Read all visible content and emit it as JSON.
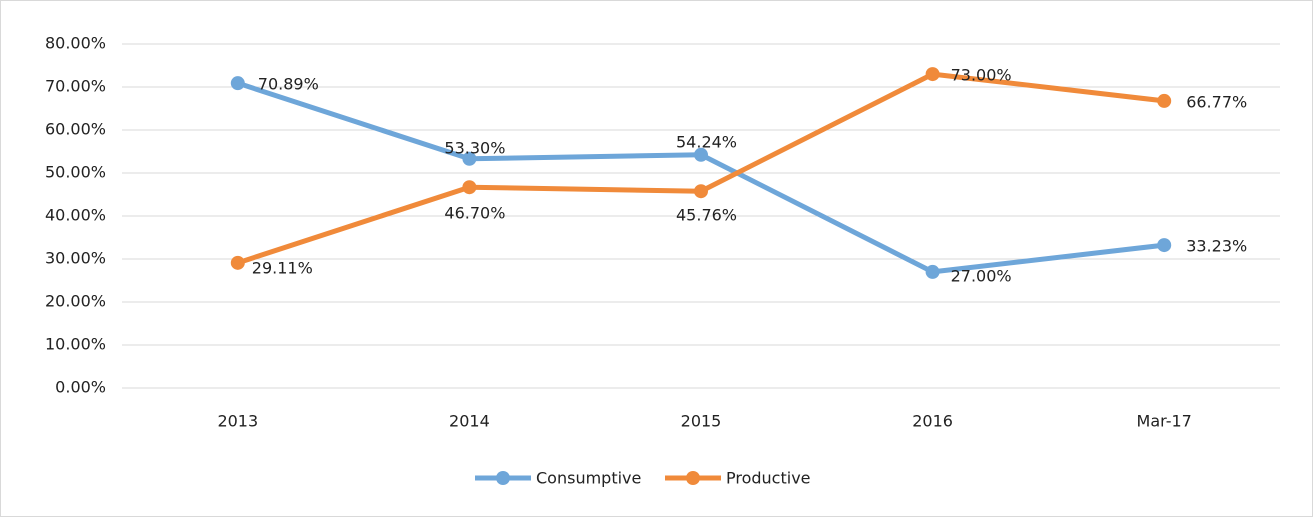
{
  "chart_data": {
    "type": "line",
    "categories": [
      "2013",
      "2014",
      "2015",
      "2016",
      "Mar-17"
    ],
    "series": [
      {
        "name": "Consumptive",
        "color": "#6ea6d9",
        "values": [
          70.89,
          53.3,
          54.24,
          27.0,
          33.23
        ],
        "value_labels": [
          "70.89%",
          "53.30%",
          "54.24%",
          "27.00%",
          "33.23%"
        ]
      },
      {
        "name": "Productive",
        "color": "#f08a3a",
        "values": [
          29.11,
          46.7,
          45.76,
          73.0,
          66.77
        ],
        "value_labels": [
          "29.11%",
          "46.70%",
          "45.76%",
          "73.00%",
          "66.77%"
        ]
      }
    ],
    "ylim": [
      0,
      80
    ],
    "yticks": [
      {
        "value": 0,
        "label": "0.00%"
      },
      {
        "value": 10,
        "label": "10.00%"
      },
      {
        "value": 20,
        "label": "20.00%"
      },
      {
        "value": 30,
        "label": "30.00%"
      },
      {
        "value": 40,
        "label": "40.00%"
      },
      {
        "value": 50,
        "label": "50.00%"
      },
      {
        "value": 60,
        "label": "60.00%"
      },
      {
        "value": 70,
        "label": "70.00%"
      },
      {
        "value": 80,
        "label": "80.00%"
      }
    ],
    "grid": true,
    "legend": "bottom"
  }
}
